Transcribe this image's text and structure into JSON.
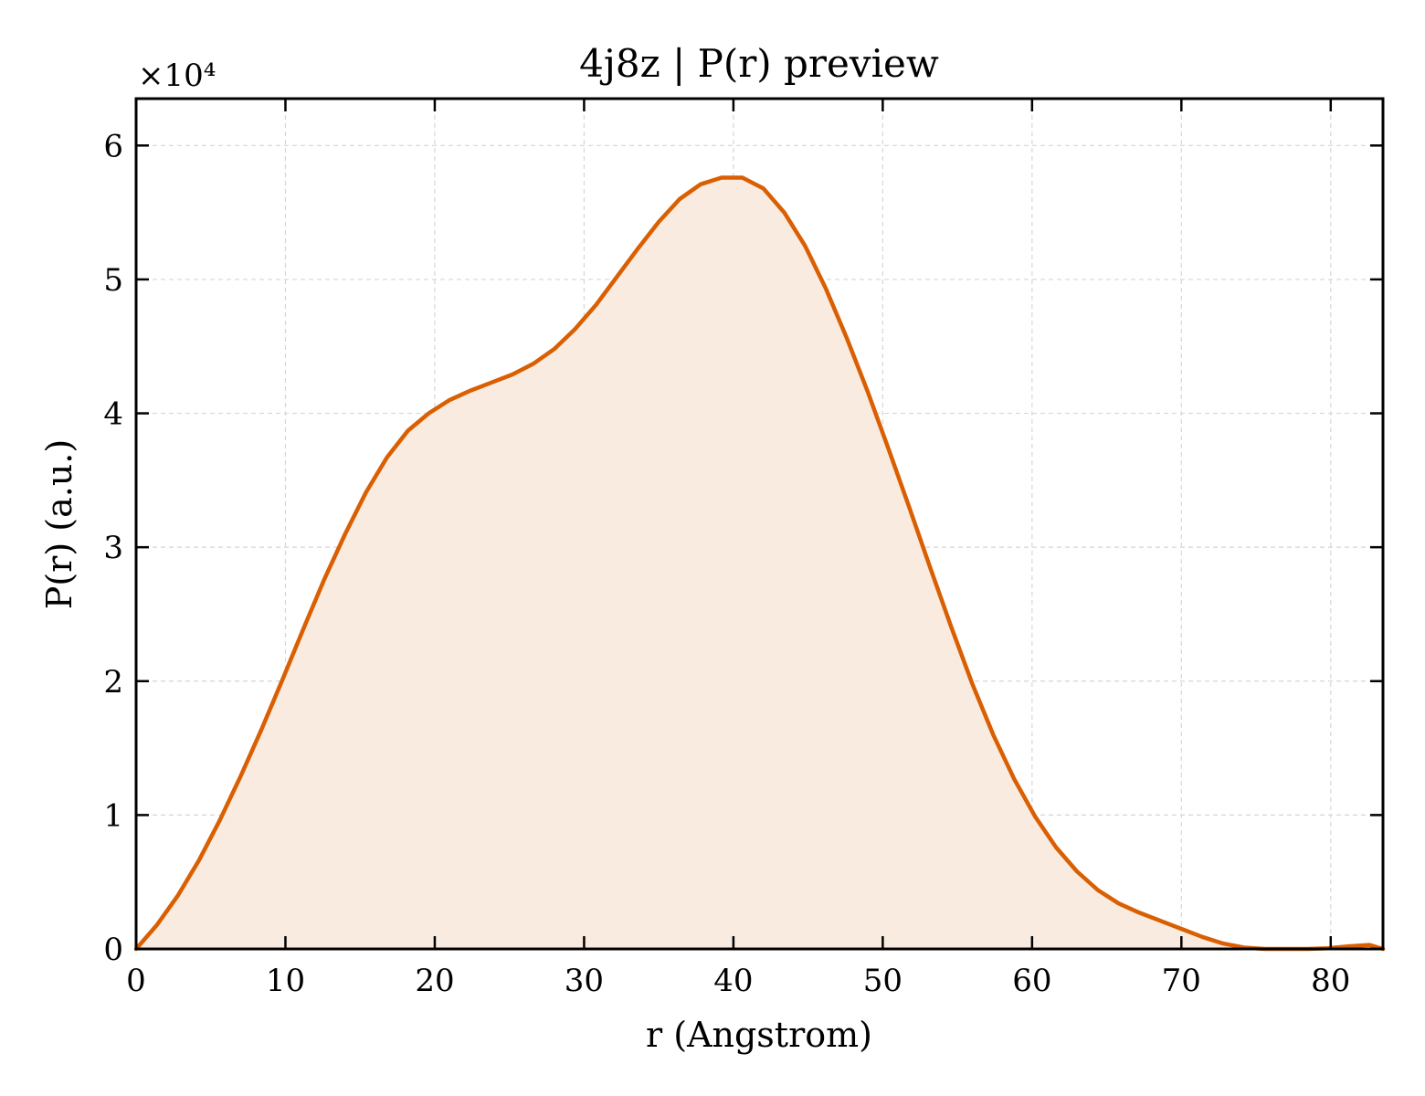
{
  "chart_data": {
    "type": "area",
    "title": "4j8z | P(r) preview",
    "xlabel": "r (Angstrom)",
    "ylabel": "P(r) (a.u.)",
    "y_multiplier_label": "×10⁴",
    "y_scale": 10000,
    "xlim": [
      0,
      83.5
    ],
    "ylim": [
      0,
      63500
    ],
    "x_ticks": [
      0,
      10,
      20,
      30,
      40,
      50,
      60,
      70,
      80
    ],
    "y_ticks": [
      0,
      10000,
      20000,
      30000,
      40000,
      50000,
      60000
    ],
    "x_tick_labels": [
      "0",
      "10",
      "20",
      "30",
      "40",
      "50",
      "60",
      "70",
      "80"
    ],
    "y_tick_labels": [
      "0",
      "1",
      "2",
      "3",
      "4",
      "5",
      "6"
    ],
    "grid": true,
    "legend": "none",
    "line_color": "#d95f02",
    "fill_color": "#f9ebe0",
    "series": [
      {
        "x": [
          0,
          1.4,
          2.8,
          4.2,
          5.6,
          7.0,
          8.4,
          9.8,
          11.2,
          12.6,
          14.0,
          15.4,
          16.8,
          18.2,
          19.6,
          21.0,
          22.4,
          23.8,
          25.2,
          26.6,
          28.0,
          29.4,
          30.8,
          32.2,
          33.6,
          35.0,
          36.4,
          37.8,
          39.2,
          40.6,
          42.0,
          43.4,
          44.8,
          46.2,
          47.6,
          49.0,
          50.4,
          51.8,
          53.2,
          54.6,
          56.0,
          57.4,
          58.8,
          60.2,
          61.6,
          63.0,
          64.4,
          65.8,
          67.2,
          68.6,
          70.0,
          71.4,
          72.8,
          74.2,
          75.6,
          77.0,
          78.4,
          79.8,
          81.2,
          82.6,
          83.5
        ],
        "y": [
          0,
          1800,
          4000,
          6600,
          9600,
          12900,
          16400,
          20100,
          23900,
          27600,
          31000,
          34100,
          36700,
          38700,
          40000,
          41000,
          41700,
          42300,
          42900,
          43700,
          44800,
          46300,
          48100,
          50200,
          52300,
          54300,
          56000,
          57100,
          57600,
          57600,
          56800,
          55000,
          52500,
          49300,
          45600,
          41600,
          37300,
          32900,
          28400,
          24000,
          19800,
          16000,
          12700,
          9900,
          7600,
          5800,
          4400,
          3400,
          2700,
          2100,
          1500,
          900,
          400,
          100,
          0,
          0,
          0,
          50,
          200,
          300,
          0
        ]
      }
    ]
  }
}
